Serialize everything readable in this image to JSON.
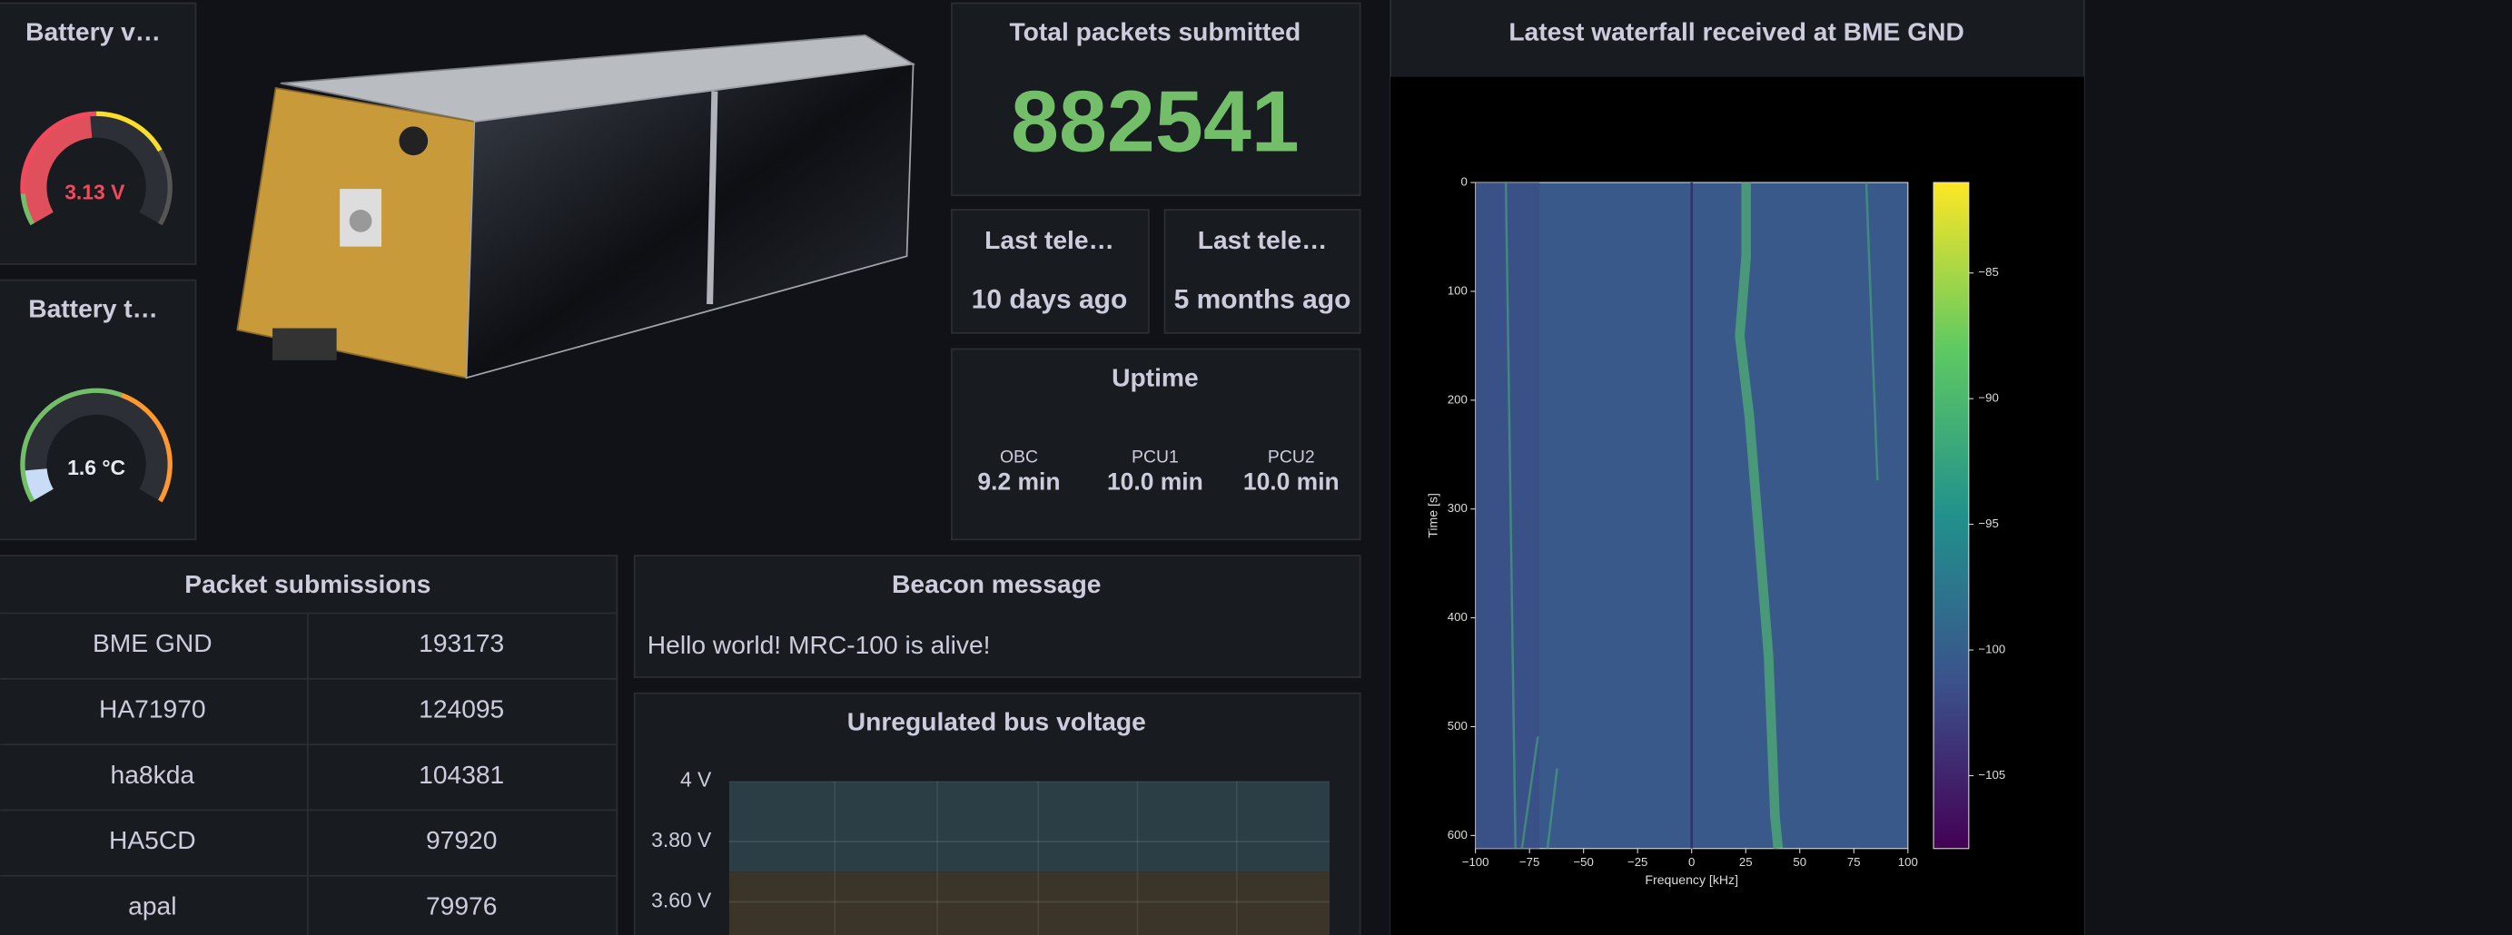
{
  "panels": {
    "battery_voltage": {
      "title": "Battery v…",
      "value": "3.13 V"
    },
    "battery_temp": {
      "title": "Battery t…",
      "value": "1.6 °C"
    },
    "total_packets": {
      "title": "Total packets submitted",
      "value": 882541
    },
    "last_telemetry_1": {
      "title": "Last tele…",
      "value": "10 days ago"
    },
    "last_telemetry_2": {
      "title": "Last tele…",
      "value": "5 months ago"
    },
    "uptime": {
      "title": "Uptime",
      "items": [
        {
          "label": "OBC",
          "value": "9.2 min"
        },
        {
          "label": "PCU1",
          "value": "10.0 min"
        },
        {
          "label": "PCU2",
          "value": "10.0 min"
        }
      ]
    },
    "waterfall": {
      "title": "Latest waterfall received at BME GND",
      "xlabel": "Frequency [kHz]",
      "ylabel": "Time [s]",
      "xlim": [
        -100,
        100
      ],
      "xticks": [
        {
          "value": -100,
          "label": "−100"
        },
        {
          "value": -75,
          "label": "−75"
        },
        {
          "value": -50,
          "label": "−50"
        },
        {
          "value": -25,
          "label": "−25"
        },
        0,
        25,
        50,
        75,
        100
      ],
      "ylim": [
        0,
        612
      ],
      "yticks": [
        0,
        100,
        200,
        300,
        400,
        500,
        600
      ],
      "clim": [
        -107.9,
        -81.4
      ],
      "cticks": [
        {
          "value": -85,
          "label": "−85"
        },
        {
          "value": -90,
          "label": "−90"
        },
        {
          "value": -95,
          "label": "−95"
        },
        {
          "value": -100,
          "label": "−100"
        },
        {
          "value": -105,
          "label": "−105"
        }
      ]
    },
    "packet_submissions": {
      "title": "Packet submissions",
      "rows": [
        [
          "BME GND",
          193173
        ],
        [
          "HA71970",
          124095
        ],
        [
          "ha8kda",
          104381
        ],
        [
          "HA5CD",
          97920
        ],
        [
          "apal",
          79976
        ]
      ]
    },
    "beacon": {
      "title": "Beacon message",
      "text": "Hello world! MRC-100 is alive!"
    },
    "bus_voltage": {
      "title": "Unregulated bus voltage",
      "ylim": [
        3.49,
        4
      ],
      "yticks": [
        {
          "value": 4,
          "label": "4 V"
        },
        {
          "value": 3.8,
          "label": "3.80 V"
        },
        {
          "value": 3.6,
          "label": "3.60 V"
        }
      ],
      "threshold": 3.7
    }
  }
}
